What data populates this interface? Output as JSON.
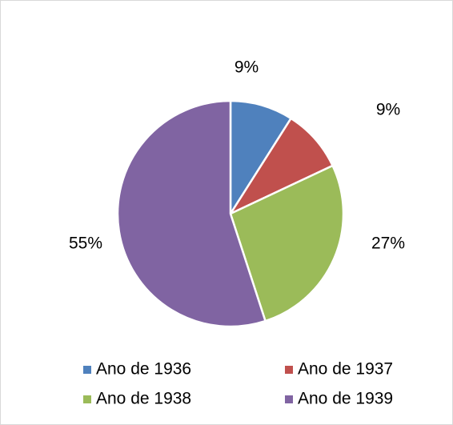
{
  "chart_data": {
    "type": "pie",
    "categories": [
      "Ano de 1936",
      "Ano de 1937",
      "Ano de 1938",
      "Ano de 1939"
    ],
    "values": [
      9,
      9,
      27,
      55
    ],
    "value_labels": [
      "9%",
      "9%",
      "27%",
      "55%"
    ],
    "colors": [
      "#4f81bd",
      "#c0504d",
      "#9bbb59",
      "#8064a2"
    ],
    "legend": "bottom"
  }
}
